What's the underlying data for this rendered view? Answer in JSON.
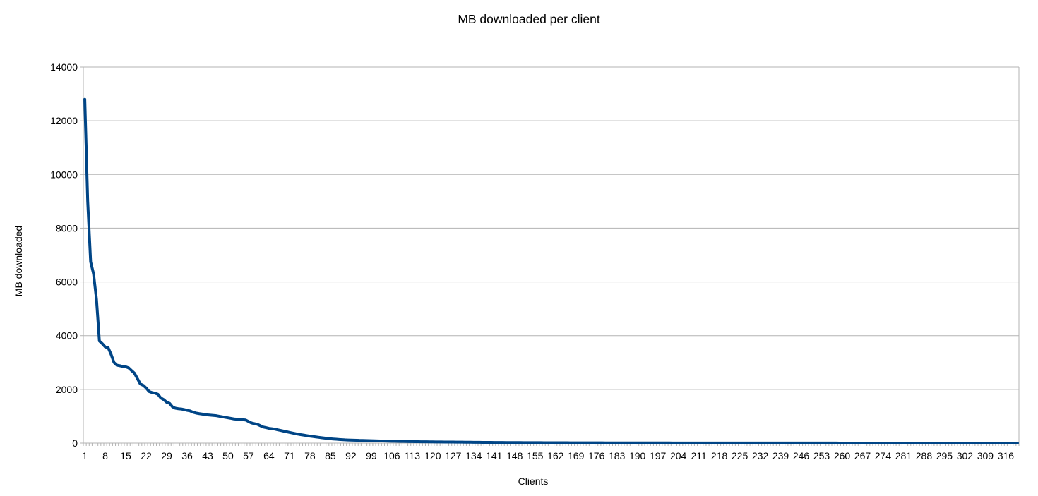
{
  "chart_data": {
    "type": "line",
    "title": "MB downloaded per client",
    "xlabel": "Clients",
    "ylabel": "MB downloaded",
    "ylim": [
      0,
      14000
    ],
    "yticks": [
      "0",
      "2000",
      "4000",
      "6000",
      "8000",
      "10000",
      "12000",
      "14000"
    ],
    "xticks": [
      "1",
      "8",
      "15",
      "22",
      "29",
      "36",
      "43",
      "50",
      "57",
      "64",
      "71",
      "78",
      "85",
      "92",
      "99",
      "106",
      "113",
      "120",
      "127",
      "134",
      "141",
      "148",
      "155",
      "162",
      "169",
      "176",
      "183",
      "190",
      "197",
      "204",
      "211",
      "218",
      "225",
      "232",
      "239",
      "246",
      "253",
      "260",
      "267",
      "274",
      "281",
      "288",
      "295",
      "302",
      "309",
      "316"
    ],
    "n_points": 320,
    "grid": true,
    "legend": "none",
    "line_color": "#004586",
    "series": [
      {
        "key_points": {
          "x": [
            1,
            2,
            3,
            4,
            5,
            6,
            7,
            8,
            9,
            10,
            11,
            12,
            13,
            14,
            15,
            16,
            17,
            18,
            19,
            20,
            21,
            22,
            23,
            24,
            25,
            26,
            27,
            28,
            29,
            30,
            31,
            32,
            33,
            34,
            35,
            36,
            37,
            38,
            39,
            40,
            43,
            46,
            48,
            50,
            52,
            54,
            56,
            58,
            60,
            62,
            64,
            66,
            68,
            71,
            74,
            78,
            82,
            85,
            90,
            95,
            100,
            106,
            113,
            120,
            127,
            134,
            141,
            150,
            160,
            170,
            180,
            190,
            200,
            220,
            250,
            280,
            320
          ],
          "y": [
            12800,
            9000,
            6750,
            6300,
            5350,
            3800,
            3700,
            3580,
            3550,
            3300,
            3000,
            2900,
            2880,
            2850,
            2840,
            2800,
            2700,
            2600,
            2400,
            2200,
            2150,
            2050,
            1920,
            1880,
            1860,
            1820,
            1680,
            1620,
            1520,
            1480,
            1350,
            1300,
            1280,
            1270,
            1250,
            1220,
            1200,
            1150,
            1120,
            1100,
            1050,
            1020,
            980,
            940,
            900,
            880,
            860,
            750,
            700,
            600,
            550,
            520,
            470,
            400,
            330,
            260,
            200,
            160,
            120,
            100,
            85,
            70,
            55,
            45,
            38,
            30,
            24,
            18,
            14,
            10,
            8,
            6,
            5,
            3,
            2,
            1,
            0
          ]
        }
      }
    ]
  }
}
